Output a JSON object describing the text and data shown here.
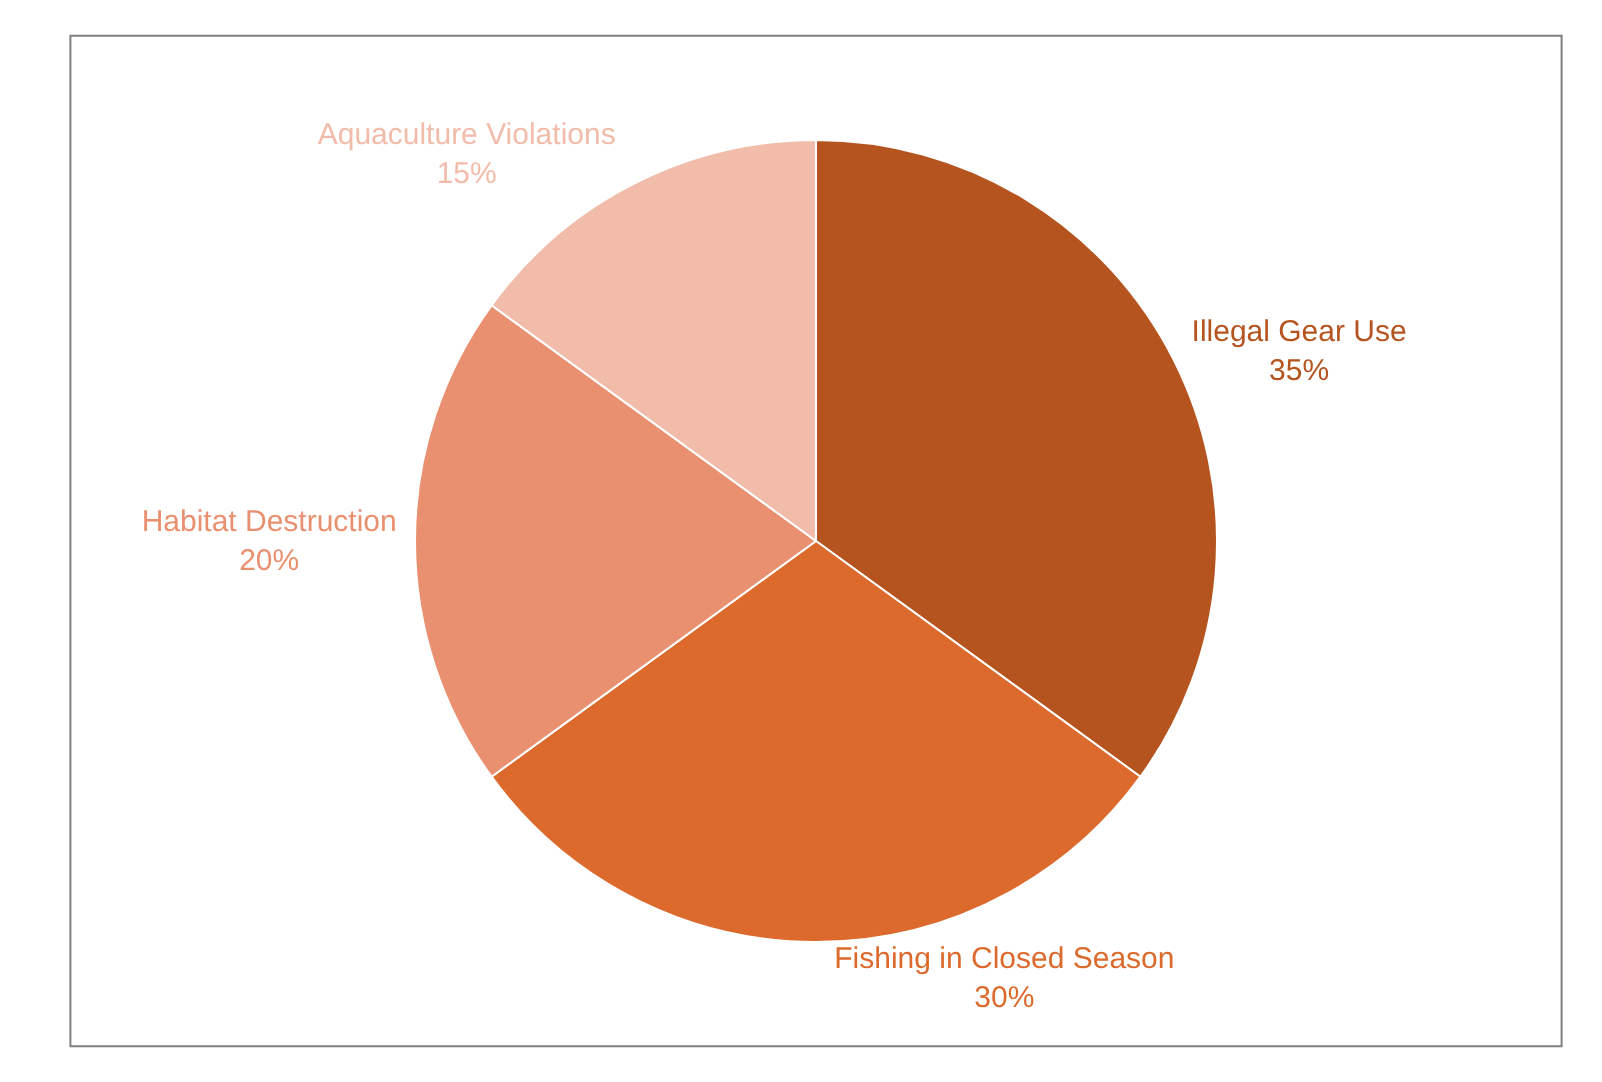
{
  "chart_data": {
    "type": "pie",
    "categories": [
      "Illegal Gear Use",
      "Fishing in Closed Season",
      "Habitat Destruction",
      "Aquaculture Violations"
    ],
    "values": [
      35,
      30,
      20,
      15
    ],
    "value_labels": [
      "35%",
      "30%",
      "20%",
      "15%"
    ],
    "colors": [
      "#b5541f",
      "#dc6a2c",
      "#e99070",
      "#f2bcaa"
    ],
    "legend": false
  }
}
